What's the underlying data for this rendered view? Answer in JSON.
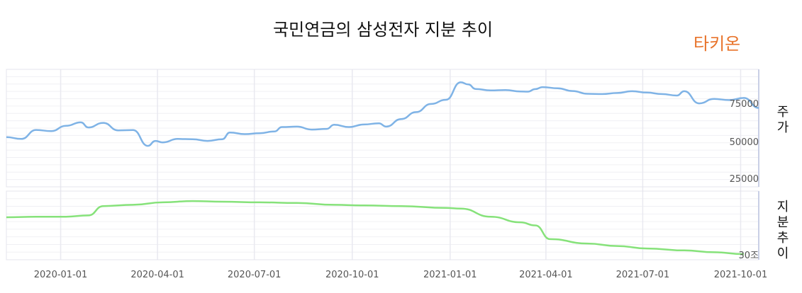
{
  "page_title": "국민연금의 삼성전자 지분 추이",
  "brand": "타키온",
  "colors": {
    "price_line": "#7fb3e6",
    "stake_line": "#86e27a",
    "brand": "#e8732a"
  },
  "chart_data": [
    {
      "type": "line",
      "ylabel": "주가",
      "yticks": [
        "75000",
        "50000",
        "25000"
      ],
      "ylim": [
        15000,
        93000
      ],
      "grid": true,
      "series": [
        {
          "points": [
            [
              "2019-11-11",
              48000
            ],
            [
              "2019-11-25",
              46800
            ],
            [
              "2019-12-09",
              52800
            ],
            [
              "2019-12-23",
              52000
            ],
            [
              "2020-01-06",
              55500
            ],
            [
              "2020-01-20",
              57800
            ],
            [
              "2020-01-27",
              54400
            ],
            [
              "2020-02-10",
              57500
            ],
            [
              "2020-02-24",
              52500
            ],
            [
              "2020-03-09",
              52700
            ],
            [
              "2020-03-23",
              42200
            ],
            [
              "2020-03-30",
              45500
            ],
            [
              "2020-04-06",
              44500
            ],
            [
              "2020-04-20",
              46800
            ],
            [
              "2020-05-04",
              46600
            ],
            [
              "2020-05-18",
              45500
            ],
            [
              "2020-06-01",
              46600
            ],
            [
              "2020-06-08",
              51100
            ],
            [
              "2020-06-22",
              50000
            ],
            [
              "2020-07-06",
              50600
            ],
            [
              "2020-07-20",
              51800
            ],
            [
              "2020-07-27",
              54700
            ],
            [
              "2020-08-10",
              55000
            ],
            [
              "2020-08-24",
              53000
            ],
            [
              "2020-09-07",
              53500
            ],
            [
              "2020-09-14",
              56200
            ],
            [
              "2020-09-28",
              54700
            ],
            [
              "2020-10-12",
              56400
            ],
            [
              "2020-10-26",
              57200
            ],
            [
              "2020-11-02",
              55000
            ],
            [
              "2020-11-16",
              60000
            ],
            [
              "2020-11-30",
              64600
            ],
            [
              "2020-12-14",
              70000
            ],
            [
              "2020-12-28",
              72800
            ],
            [
              "2021-01-11",
              84400
            ],
            [
              "2021-01-18",
              83000
            ],
            [
              "2021-01-25",
              80000
            ],
            [
              "2021-02-08",
              79000
            ],
            [
              "2021-02-22",
              79300
            ],
            [
              "2021-03-08",
              78300
            ],
            [
              "2021-03-15",
              78200
            ],
            [
              "2021-03-22",
              79900
            ],
            [
              "2021-03-29",
              81200
            ],
            [
              "2021-04-12",
              80400
            ],
            [
              "2021-04-26",
              78600
            ],
            [
              "2021-05-10",
              76800
            ],
            [
              "2021-05-24",
              76600
            ],
            [
              "2021-06-07",
              77300
            ],
            [
              "2021-06-21",
              78500
            ],
            [
              "2021-07-05",
              77600
            ],
            [
              "2021-07-19",
              76600
            ],
            [
              "2021-08-02",
              75600
            ],
            [
              "2021-08-09",
              78500
            ],
            [
              "2021-08-23",
              70400
            ],
            [
              "2021-09-06",
              73400
            ],
            [
              "2021-09-20",
              72600
            ],
            [
              "2021-10-04",
              74000
            ],
            [
              "2021-10-18",
              67400
            ]
          ]
        }
      ]
    },
    {
      "type": "line",
      "ylabel": "지분추이",
      "yticks": [
        "30조"
      ],
      "ylim": [
        29,
        40
      ],
      "grid": true,
      "series": [
        {
          "points": [
            [
              "2019-11-11",
              35.8
            ],
            [
              "2019-12-09",
              35.9
            ],
            [
              "2020-01-06",
              35.9
            ],
            [
              "2020-01-27",
              36.1
            ],
            [
              "2020-02-10",
              37.6
            ],
            [
              "2020-03-09",
              37.8
            ],
            [
              "2020-04-06",
              38.2
            ],
            [
              "2020-05-04",
              38.4
            ],
            [
              "2020-06-01",
              38.3
            ],
            [
              "2020-07-06",
              38.2
            ],
            [
              "2020-08-10",
              38.1
            ],
            [
              "2020-09-14",
              37.8
            ],
            [
              "2020-10-12",
              37.7
            ],
            [
              "2020-11-16",
              37.6
            ],
            [
              "2020-12-28",
              37.3
            ],
            [
              "2021-01-11",
              37.2
            ],
            [
              "2021-02-08",
              35.9
            ],
            [
              "2021-03-08",
              35.0
            ],
            [
              "2021-03-22",
              34.5
            ],
            [
              "2021-04-05",
              32.3
            ],
            [
              "2021-05-10",
              31.6
            ],
            [
              "2021-06-07",
              31.2
            ],
            [
              "2021-07-05",
              30.8
            ],
            [
              "2021-08-09",
              30.5
            ],
            [
              "2021-09-06",
              30.2
            ],
            [
              "2021-10-04",
              29.9
            ]
          ]
        }
      ]
    }
  ],
  "x_ticks": [
    "2020-01-01",
    "2020-04-01",
    "2020-07-01",
    "2020-10-01",
    "2021-01-01",
    "2021-04-01",
    "2021-07-01",
    "2021-10-01"
  ]
}
